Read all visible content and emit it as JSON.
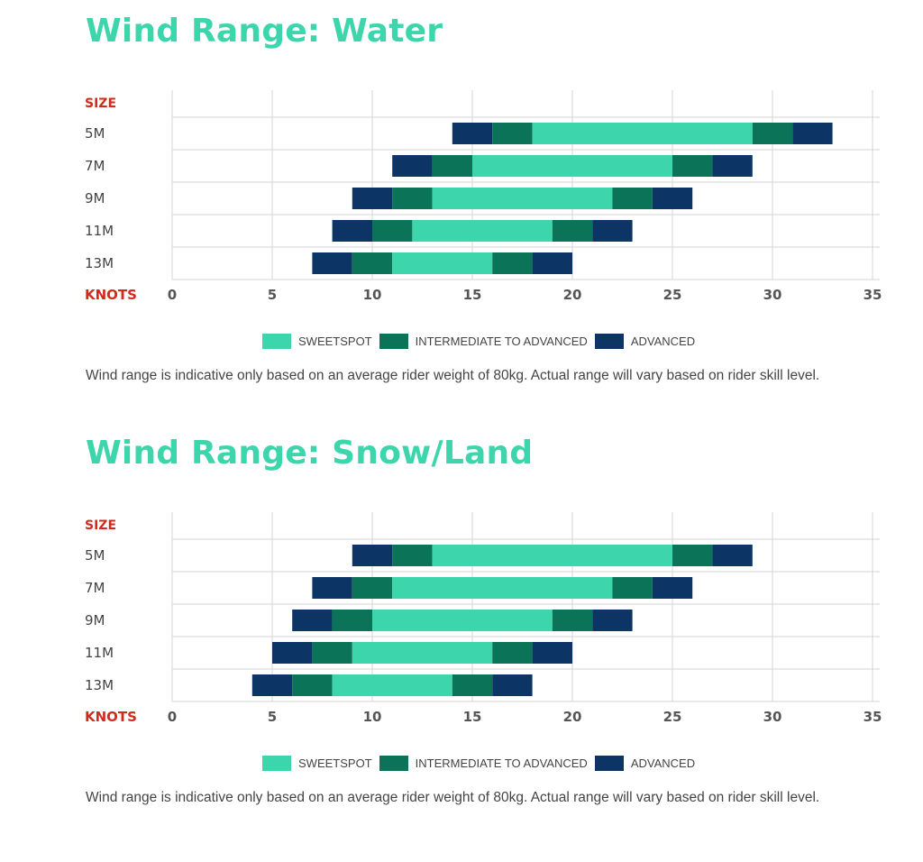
{
  "colors": {
    "heading": "#3dd6ac",
    "axis_label": "#d42a1e",
    "sweetspot": "#3dd6ac",
    "intermediate": "#0a7358",
    "advanced": "#0c3565",
    "grid": "#d6d6d6",
    "text": "#444444"
  },
  "sections": [
    {
      "title": "Wind Range: Water",
      "note": "Wind range is indicative only based on an average rider weight of 80kg. Actual range will vary based on rider skill level."
    },
    {
      "title": "Wind Range: Snow/Land",
      "note": "Wind range is indicative only based on an average rider weight of 80kg. Actual range will vary based on rider skill level."
    }
  ],
  "legend": {
    "sweetspot": "SWEETSPOT",
    "intermediate": "INTERMEDIATE TO ADVANCED",
    "advanced": "ADVANCED"
  },
  "chart_data": [
    {
      "type": "bar",
      "orientation": "horizontal-stacked-range",
      "title": "Wind Range: Water",
      "ylabel": "SIZE",
      "xlabel": "KNOTS",
      "xlim": [
        0,
        35
      ],
      "xticks": [
        0,
        5,
        10,
        15,
        20,
        25,
        30,
        35
      ],
      "grid": true,
      "legend_position": "bottom-center",
      "categories": [
        "5M",
        "7M",
        "9M",
        "11M",
        "13M"
      ],
      "segments": [
        [
          {
            "series": "advanced",
            "from": 14,
            "to": 16
          },
          {
            "series": "intermediate",
            "from": 16,
            "to": 18
          },
          {
            "series": "sweetspot",
            "from": 18,
            "to": 29
          },
          {
            "series": "intermediate",
            "from": 29,
            "to": 31
          },
          {
            "series": "advanced",
            "from": 31,
            "to": 33
          }
        ],
        [
          {
            "series": "advanced",
            "from": 11,
            "to": 13
          },
          {
            "series": "intermediate",
            "from": 13,
            "to": 15
          },
          {
            "series": "sweetspot",
            "from": 15,
            "to": 25
          },
          {
            "series": "intermediate",
            "from": 25,
            "to": 27
          },
          {
            "series": "advanced",
            "from": 27,
            "to": 29
          }
        ],
        [
          {
            "series": "advanced",
            "from": 9,
            "to": 11
          },
          {
            "series": "intermediate",
            "from": 11,
            "to": 13
          },
          {
            "series": "sweetspot",
            "from": 13,
            "to": 22
          },
          {
            "series": "intermediate",
            "from": 22,
            "to": 24
          },
          {
            "series": "advanced",
            "from": 24,
            "to": 26
          }
        ],
        [
          {
            "series": "advanced",
            "from": 8,
            "to": 10
          },
          {
            "series": "intermediate",
            "from": 10,
            "to": 12
          },
          {
            "series": "sweetspot",
            "from": 12,
            "to": 19
          },
          {
            "series": "intermediate",
            "from": 19,
            "to": 21
          },
          {
            "series": "advanced",
            "from": 21,
            "to": 23
          }
        ],
        [
          {
            "series": "advanced",
            "from": 7,
            "to": 9
          },
          {
            "series": "intermediate",
            "from": 9,
            "to": 11
          },
          {
            "series": "sweetspot",
            "from": 11,
            "to": 16
          },
          {
            "series": "intermediate",
            "from": 16,
            "to": 18
          },
          {
            "series": "advanced",
            "from": 18,
            "to": 20
          }
        ]
      ]
    },
    {
      "type": "bar",
      "orientation": "horizontal-stacked-range",
      "title": "Wind Range: Snow/Land",
      "ylabel": "SIZE",
      "xlabel": "KNOTS",
      "xlim": [
        0,
        35
      ],
      "xticks": [
        0,
        5,
        10,
        15,
        20,
        25,
        30,
        35
      ],
      "grid": true,
      "legend_position": "bottom-center",
      "categories": [
        "5M",
        "7M",
        "9M",
        "11M",
        "13M"
      ],
      "segments": [
        [
          {
            "series": "advanced",
            "from": 9,
            "to": 11
          },
          {
            "series": "intermediate",
            "from": 11,
            "to": 13
          },
          {
            "series": "sweetspot",
            "from": 13,
            "to": 25
          },
          {
            "series": "intermediate",
            "from": 25,
            "to": 27
          },
          {
            "series": "advanced",
            "from": 27,
            "to": 29
          }
        ],
        [
          {
            "series": "advanced",
            "from": 7,
            "to": 9
          },
          {
            "series": "intermediate",
            "from": 9,
            "to": 11
          },
          {
            "series": "sweetspot",
            "from": 11,
            "to": 22
          },
          {
            "series": "intermediate",
            "from": 22,
            "to": 24
          },
          {
            "series": "advanced",
            "from": 24,
            "to": 26
          }
        ],
        [
          {
            "series": "advanced",
            "from": 6,
            "to": 8
          },
          {
            "series": "intermediate",
            "from": 8,
            "to": 10
          },
          {
            "series": "sweetspot",
            "from": 10,
            "to": 19
          },
          {
            "series": "intermediate",
            "from": 19,
            "to": 21
          },
          {
            "series": "advanced",
            "from": 21,
            "to": 23
          }
        ],
        [
          {
            "series": "advanced",
            "from": 5,
            "to": 7
          },
          {
            "series": "intermediate",
            "from": 7,
            "to": 9
          },
          {
            "series": "sweetspot",
            "from": 9,
            "to": 16
          },
          {
            "series": "intermediate",
            "from": 16,
            "to": 18
          },
          {
            "series": "advanced",
            "from": 18,
            "to": 20
          }
        ],
        [
          {
            "series": "advanced",
            "from": 4,
            "to": 6
          },
          {
            "series": "intermediate",
            "from": 6,
            "to": 8
          },
          {
            "series": "sweetspot",
            "from": 8,
            "to": 14
          },
          {
            "series": "intermediate",
            "from": 14,
            "to": 16
          },
          {
            "series": "advanced",
            "from": 16,
            "to": 18
          }
        ]
      ]
    }
  ]
}
